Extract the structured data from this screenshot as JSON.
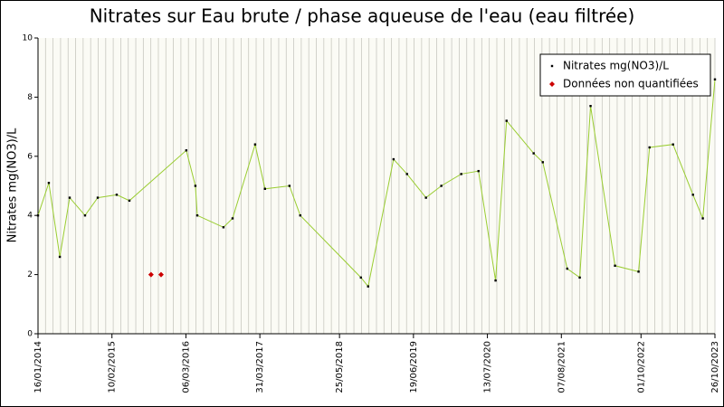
{
  "chart_data": {
    "type": "line",
    "title": "Nitrates sur Eau brute / phase aqueuse de l'eau (eau filtrée)",
    "y_label": "Nitrates mg(NO3)/L",
    "xlim": [
      "16/01/2014",
      "26/10/2023"
    ],
    "xticks": [
      "16/01/2014",
      "10/02/2015",
      "06/03/2016",
      "31/03/2017",
      "25/05/2018",
      "19/06/2019",
      "13/07/2020",
      "07/08/2021",
      "01/10/2022",
      "26/10/2023"
    ],
    "ylim": [
      0,
      10
    ],
    "yticks": [
      0,
      2,
      4,
      6,
      8,
      10
    ],
    "grid": true,
    "legend": "top-right",
    "series": [
      {
        "name": "Nitrates mg(NO3)/L",
        "color": "#9acd32",
        "marker_color": "#000000",
        "line": true,
        "x": [
          "16/01/2014",
          "14/03/2014",
          "11/05/2014",
          "02/07/2014",
          "21/09/2014",
          "27/11/2014",
          "07/03/2015",
          "13/05/2015",
          "08/03/2016",
          "25/04/2016",
          "05/05/2016",
          "20/09/2016",
          "07/11/2016",
          "06/03/2017",
          "27/04/2017",
          "03/09/2017",
          "30/10/2017",
          "15/09/2018",
          "23/10/2018",
          "06/03/2019",
          "16/05/2019",
          "24/08/2019",
          "13/11/2019",
          "26/02/2020",
          "27/05/2020",
          "25/08/2020",
          "22/10/2020",
          "14/03/2021",
          "01/05/2021",
          "07/09/2021",
          "12/11/2021",
          "08/01/2022",
          "17/05/2022",
          "18/09/2022",
          "15/11/2022",
          "19/03/2023",
          "02/07/2023",
          "23/08/2023",
          "26/10/2023"
        ],
        "values": [
          4.0,
          5.1,
          2.6,
          4.6,
          4.0,
          4.6,
          4.7,
          4.5,
          6.2,
          5.0,
          4.0,
          3.6,
          3.9,
          6.4,
          4.9,
          5.0,
          4.0,
          1.9,
          1.6,
          5.9,
          5.4,
          4.6,
          5.0,
          5.4,
          5.5,
          1.8,
          7.2,
          6.1,
          5.8,
          2.2,
          1.9,
          7.7,
          2.3,
          2.1,
          6.3,
          6.4,
          4.7,
          3.9,
          8.6
        ]
      },
      {
        "name": "Données non quantifiées",
        "color": "#cc0000",
        "marker_color": "#cc0000",
        "line": false,
        "x": [
          "04/09/2015",
          "27/10/2015"
        ],
        "values": [
          2.0,
          2.0
        ]
      }
    ]
  }
}
